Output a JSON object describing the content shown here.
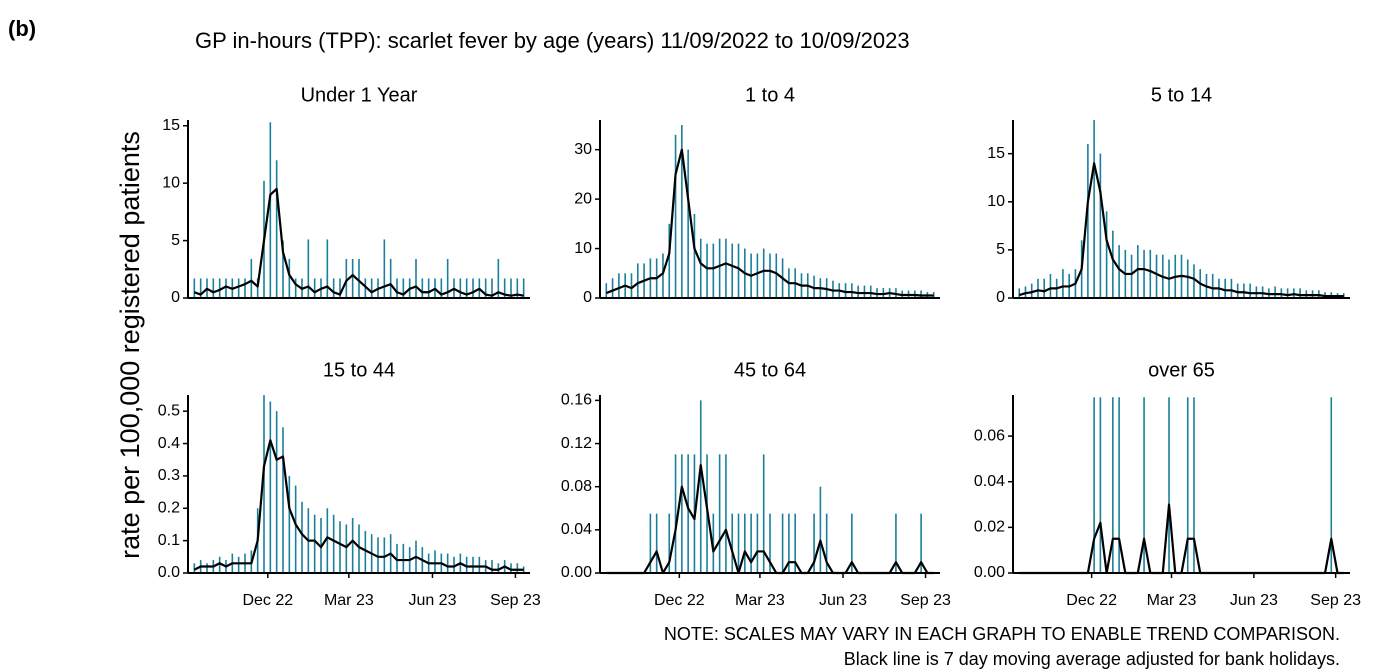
{
  "panel_label": "(b)",
  "title": "GP in-hours (TPP): scarlet fever by age (years) 11/09/2022 to 10/09/2023",
  "y_label": "rate per 100,000 registered patients",
  "notes": [
    "NOTE: SCALES MAY VARY IN EACH GRAPH TO ENABLE TREND COMPARISON.",
    "Black line is 7 day moving average adjusted for bank holidays."
  ],
  "chart_data": [
    {
      "type": "line",
      "title": "Under 1 Year",
      "x": [
        0,
        1,
        2,
        3,
        4,
        5,
        6,
        7,
        8,
        9,
        10,
        11,
        12,
        13,
        14,
        15,
        16,
        17,
        18,
        19,
        20,
        21,
        22,
        23,
        24,
        25,
        26,
        27,
        28,
        29,
        30,
        31,
        32,
        33,
        34,
        35,
        36,
        37,
        38,
        39,
        40,
        41,
        42,
        43,
        44,
        45,
        46,
        47,
        48,
        49,
        50,
        51,
        52
      ],
      "xlim": [
        -1,
        53
      ],
      "ylim": [
        0,
        15.5
      ],
      "yticks": [
        0,
        5,
        10,
        15
      ],
      "series": [
        {
          "color": "#1a7f9a",
          "values": [
            1.7,
            1.7,
            1.7,
            1.7,
            1.7,
            1.7,
            1.7,
            1.7,
            1.7,
            3.4,
            1.7,
            10.2,
            15.3,
            12,
            5,
            3.4,
            1.7,
            1.7,
            5.1,
            1.7,
            1.7,
            5.1,
            1.7,
            1.7,
            3.4,
            3.4,
            3.4,
            1.7,
            1.7,
            1.7,
            5.1,
            3.4,
            1.7,
            1.7,
            1.7,
            3.4,
            1.7,
            1.7,
            1.7,
            1.7,
            3.4,
            1.7,
            1.7,
            1.7,
            1.7,
            1.7,
            1.7,
            1.7,
            3.4,
            1.7,
            1.7,
            1.7,
            1.7
          ]
        },
        {
          "color": "#000000",
          "values": [
            0.5,
            0.3,
            0.8,
            0.5,
            0.7,
            1.0,
            0.8,
            1.0,
            1.2,
            1.5,
            1.0,
            5.0,
            9.0,
            9.5,
            4.0,
            2.0,
            1.2,
            0.8,
            1.0,
            0.5,
            0.8,
            1.0,
            0.5,
            0.3,
            1.5,
            2.0,
            1.5,
            1.0,
            0.5,
            0.8,
            1.0,
            1.2,
            0.5,
            0.3,
            0.8,
            1.0,
            0.5,
            0.5,
            0.8,
            0.3,
            0.5,
            0.8,
            0.5,
            0.3,
            0.5,
            0.8,
            0.3,
            0.2,
            0.5,
            0.3,
            0.2,
            0.3,
            0.2
          ]
        }
      ]
    },
    {
      "type": "line",
      "title": "1 to 4",
      "x": [
        0,
        1,
        2,
        3,
        4,
        5,
        6,
        7,
        8,
        9,
        10,
        11,
        12,
        13,
        14,
        15,
        16,
        17,
        18,
        19,
        20,
        21,
        22,
        23,
        24,
        25,
        26,
        27,
        28,
        29,
        30,
        31,
        32,
        33,
        34,
        35,
        36,
        37,
        38,
        39,
        40,
        41,
        42,
        43,
        44,
        45,
        46,
        47,
        48,
        49,
        50,
        51,
        52
      ],
      "xlim": [
        -1,
        53
      ],
      "ylim": [
        0,
        36
      ],
      "yticks": [
        0,
        10,
        20,
        30
      ],
      "series": [
        {
          "color": "#1a7f9a",
          "values": [
            3,
            4,
            5,
            5,
            5,
            7,
            7,
            8,
            8,
            9,
            15,
            33,
            35,
            30,
            17,
            12,
            11,
            11,
            12,
            12,
            11,
            11,
            10,
            9,
            9,
            10,
            9,
            9,
            8,
            6,
            6,
            5,
            5,
            4.5,
            4,
            4,
            3.5,
            3,
            3,
            3,
            2.5,
            2.5,
            2.5,
            2,
            2,
            2,
            2,
            1.5,
            1.5,
            1.5,
            1.5,
            1.2,
            1.2
          ]
        },
        {
          "color": "#000000",
          "values": [
            1,
            1.5,
            2,
            2.5,
            2,
            3,
            3.5,
            4,
            4,
            5,
            9,
            25,
            30,
            20,
            10,
            7,
            6,
            6,
            6.5,
            7,
            6.5,
            6,
            5,
            4.5,
            5,
            5.5,
            5.5,
            5,
            4,
            3,
            3,
            2.5,
            2.5,
            2,
            2,
            1.8,
            1.5,
            1.5,
            1.2,
            1.2,
            1,
            1,
            1,
            0.8,
            0.8,
            1,
            0.8,
            0.6,
            0.6,
            0.6,
            0.5,
            0.5,
            0.5
          ]
        }
      ]
    },
    {
      "type": "line",
      "title": "5 to 14",
      "x": [
        0,
        1,
        2,
        3,
        4,
        5,
        6,
        7,
        8,
        9,
        10,
        11,
        12,
        13,
        14,
        15,
        16,
        17,
        18,
        19,
        20,
        21,
        22,
        23,
        24,
        25,
        26,
        27,
        28,
        29,
        30,
        31,
        32,
        33,
        34,
        35,
        36,
        37,
        38,
        39,
        40,
        41,
        42,
        43,
        44,
        45,
        46,
        47,
        48,
        49,
        50,
        51,
        52
      ],
      "xlim": [
        -1,
        53
      ],
      "ylim": [
        0,
        18.5
      ],
      "yticks": [
        0,
        5,
        10,
        15
      ],
      "series": [
        {
          "color": "#1a7f9a",
          "values": [
            1,
            1.2,
            1.5,
            2,
            2,
            2.5,
            2,
            3,
            2.5,
            3,
            6,
            16,
            18.5,
            15,
            9,
            7,
            5.5,
            5,
            4.5,
            5.5,
            5,
            5,
            4.5,
            4.5,
            4,
            4.5,
            4.5,
            4,
            3.5,
            3,
            2.5,
            2.5,
            2,
            2,
            2,
            1.5,
            1.5,
            1.5,
            1.2,
            1.2,
            1,
            1.2,
            1,
            1,
            1,
            1,
            0.8,
            0.8,
            0.8,
            0.6,
            0.6,
            0.5,
            0.5
          ]
        },
        {
          "color": "#000000",
          "values": [
            0.3,
            0.5,
            0.6,
            0.8,
            0.7,
            1,
            1,
            1.2,
            1.2,
            1.5,
            3,
            10,
            14,
            11,
            6,
            4,
            3,
            2.5,
            2.5,
            3,
            3,
            2.8,
            2.5,
            2.2,
            2,
            2.2,
            2.3,
            2.2,
            2,
            1.5,
            1.2,
            1,
            1,
            0.8,
            0.8,
            0.6,
            0.6,
            0.5,
            0.5,
            0.5,
            0.4,
            0.4,
            0.4,
            0.3,
            0.4,
            0.3,
            0.3,
            0.3,
            0.3,
            0.2,
            0.2,
            0.2,
            0.2
          ]
        }
      ]
    },
    {
      "type": "line",
      "title": "15 to 44",
      "x": [
        0,
        1,
        2,
        3,
        4,
        5,
        6,
        7,
        8,
        9,
        10,
        11,
        12,
        13,
        14,
        15,
        16,
        17,
        18,
        19,
        20,
        21,
        22,
        23,
        24,
        25,
        26,
        27,
        28,
        29,
        30,
        31,
        32,
        33,
        34,
        35,
        36,
        37,
        38,
        39,
        40,
        41,
        42,
        43,
        44,
        45,
        46,
        47,
        48,
        49,
        50,
        51,
        52
      ],
      "xlim": [
        -1,
        53
      ],
      "ylim": [
        0,
        0.55
      ],
      "yticks": [
        {
          "value": 0,
          "label": "0.0"
        },
        0.1,
        0.2,
        0.3,
        0.4,
        0.5
      ],
      "xticks": [
        {
          "value": 11.6,
          "label": "Dec 22"
        },
        {
          "value": 24.4,
          "label": "Mar 23"
        },
        {
          "value": 37.6,
          "label": "Jun 23"
        },
        {
          "value": 50.7,
          "label": "Sep 23"
        }
      ],
      "series": [
        {
          "color": "#1a7f9a",
          "values": [
            0.03,
            0.04,
            0.03,
            0.04,
            0.05,
            0.04,
            0.06,
            0.05,
            0.06,
            0.07,
            0.2,
            0.55,
            0.53,
            0.5,
            0.45,
            0.3,
            0.27,
            0.22,
            0.2,
            0.18,
            0.17,
            0.2,
            0.18,
            0.16,
            0.15,
            0.17,
            0.15,
            0.13,
            0.12,
            0.11,
            0.11,
            0.12,
            0.09,
            0.09,
            0.08,
            0.1,
            0.08,
            0.06,
            0.07,
            0.06,
            0.06,
            0.05,
            0.06,
            0.05,
            0.05,
            0.05,
            0.04,
            0.04,
            0.03,
            0.04,
            0.03,
            0.03,
            0.02
          ]
        },
        {
          "color": "#000000",
          "values": [
            0.01,
            0.02,
            0.02,
            0.02,
            0.03,
            0.02,
            0.03,
            0.03,
            0.03,
            0.03,
            0.1,
            0.33,
            0.41,
            0.35,
            0.36,
            0.2,
            0.15,
            0.12,
            0.1,
            0.1,
            0.08,
            0.11,
            0.1,
            0.09,
            0.08,
            0.1,
            0.08,
            0.07,
            0.06,
            0.05,
            0.05,
            0.06,
            0.04,
            0.04,
            0.04,
            0.05,
            0.04,
            0.03,
            0.03,
            0.03,
            0.02,
            0.02,
            0.03,
            0.02,
            0.02,
            0.02,
            0.02,
            0.01,
            0.01,
            0.02,
            0.01,
            0.01,
            0.01
          ]
        }
      ]
    },
    {
      "type": "line",
      "title": "45 to 64",
      "x": [
        0,
        1,
        2,
        3,
        4,
        5,
        6,
        7,
        8,
        9,
        10,
        11,
        12,
        13,
        14,
        15,
        16,
        17,
        18,
        19,
        20,
        21,
        22,
        23,
        24,
        25,
        26,
        27,
        28,
        29,
        30,
        31,
        32,
        33,
        34,
        35,
        36,
        37,
        38,
        39,
        40,
        41,
        42,
        43,
        44,
        45,
        46,
        47,
        48,
        49,
        50,
        51,
        52
      ],
      "xlim": [
        -1,
        53
      ],
      "ylim": [
        0,
        0.165
      ],
      "yticks": [
        {
          "value": 0,
          "label": "0.00"
        },
        {
          "value": 0.04,
          "label": "0.04"
        },
        {
          "value": 0.08,
          "label": "0.08"
        },
        {
          "value": 0.12,
          "label": "0.12"
        },
        {
          "value": 0.16,
          "label": "0.16"
        }
      ],
      "xticks": [
        {
          "value": 11.6,
          "label": "Dec 22"
        },
        {
          "value": 24.4,
          "label": "Mar 23"
        },
        {
          "value": 37.6,
          "label": "Jun 23"
        },
        {
          "value": 50.7,
          "label": "Sep 23"
        }
      ],
      "series": [
        {
          "color": "#1a7f9a",
          "values": [
            0,
            0,
            0,
            0,
            0,
            0,
            0,
            0.055,
            0.055,
            0,
            0.055,
            0.11,
            0.11,
            0.11,
            0.11,
            0.16,
            0.11,
            0.055,
            0.11,
            0.11,
            0.055,
            0.055,
            0.055,
            0.055,
            0.055,
            0.11,
            0.055,
            0,
            0.055,
            0.055,
            0.055,
            0,
            0,
            0.055,
            0.08,
            0.055,
            0,
            0,
            0,
            0.055,
            0,
            0,
            0,
            0,
            0,
            0,
            0.055,
            0,
            0,
            0,
            0.055,
            0,
            0
          ]
        },
        {
          "color": "#000000",
          "values": [
            0,
            0,
            0,
            0,
            0,
            0,
            0,
            0.01,
            0.02,
            0,
            0.01,
            0.04,
            0.08,
            0.06,
            0.05,
            0.1,
            0.06,
            0.02,
            0.03,
            0.04,
            0.02,
            0,
            0.02,
            0.01,
            0.02,
            0.02,
            0.01,
            0,
            0,
            0.01,
            0.01,
            0,
            0,
            0.01,
            0.03,
            0.01,
            0,
            0,
            0,
            0.01,
            0,
            0,
            0,
            0,
            0,
            0,
            0.01,
            0,
            0,
            0,
            0.01,
            0,
            0
          ]
        }
      ]
    },
    {
      "type": "line",
      "title": "over 65",
      "x": [
        0,
        1,
        2,
        3,
        4,
        5,
        6,
        7,
        8,
        9,
        10,
        11,
        12,
        13,
        14,
        15,
        16,
        17,
        18,
        19,
        20,
        21,
        22,
        23,
        24,
        25,
        26,
        27,
        28,
        29,
        30,
        31,
        32,
        33,
        34,
        35,
        36,
        37,
        38,
        39,
        40,
        41,
        42,
        43,
        44,
        45,
        46,
        47,
        48,
        49,
        50,
        51,
        52
      ],
      "xlim": [
        -1,
        53
      ],
      "ylim": [
        0,
        0.078
      ],
      "yticks": [
        {
          "value": 0,
          "label": "0.00"
        },
        {
          "value": 0.02,
          "label": "0.02"
        },
        {
          "value": 0.04,
          "label": "0.04"
        },
        {
          "value": 0.06,
          "label": "0.06"
        }
      ],
      "xticks": [
        {
          "value": 11.6,
          "label": "Dec 22"
        },
        {
          "value": 24.4,
          "label": "Mar 23"
        },
        {
          "value": 37.6,
          "label": "Jun 23"
        },
        {
          "value": 50.7,
          "label": "Sep 23"
        }
      ],
      "series": [
        {
          "color": "#1a7f9a",
          "values": [
            0,
            0,
            0,
            0,
            0,
            0,
            0,
            0,
            0,
            0,
            0,
            0,
            0.077,
            0.077,
            0,
            0.077,
            0.077,
            0,
            0,
            0,
            0.077,
            0,
            0,
            0,
            0.077,
            0,
            0,
            0.077,
            0.077,
            0,
            0,
            0,
            0,
            0,
            0,
            0,
            0,
            0,
            0,
            0,
            0,
            0,
            0,
            0,
            0,
            0,
            0,
            0,
            0,
            0,
            0.077,
            0,
            0
          ]
        },
        {
          "color": "#000000",
          "values": [
            0,
            0,
            0,
            0,
            0,
            0,
            0,
            0,
            0,
            0,
            0,
            0,
            0.015,
            0.022,
            0,
            0.015,
            0.015,
            0,
            0,
            0,
            0.015,
            0,
            0,
            0,
            0.03,
            0,
            0,
            0.015,
            0.015,
            0,
            0,
            0,
            0,
            0,
            0,
            0,
            0,
            0,
            0,
            0,
            0,
            0,
            0,
            0,
            0,
            0,
            0,
            0,
            0,
            0,
            0.015,
            0,
            0
          ]
        }
      ]
    }
  ]
}
